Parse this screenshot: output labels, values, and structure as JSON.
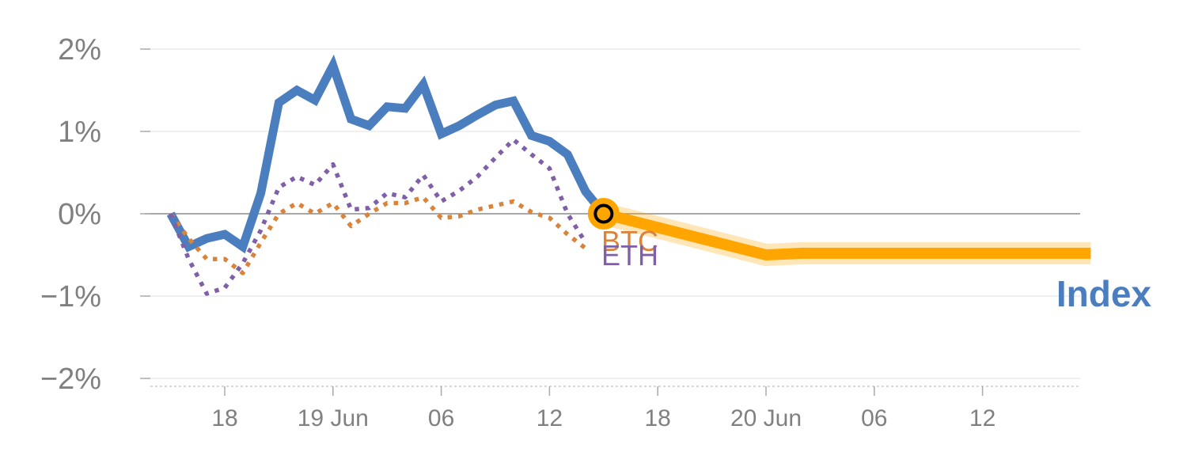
{
  "chart_data": {
    "type": "line",
    "y_unit": "%",
    "ylim": [
      -2,
      2
    ],
    "yticks": [
      {
        "value": 2,
        "label": "2%"
      },
      {
        "value": 1,
        "label": "1%"
      },
      {
        "value": 0,
        "label": "0%"
      },
      {
        "value": -1,
        "label": "−1%"
      },
      {
        "value": -2,
        "label": "−2%"
      }
    ],
    "x_unit": "hours",
    "xlim": [
      -4,
      48
    ],
    "xticks": [
      {
        "value": 0,
        "label": "18"
      },
      {
        "value": 6,
        "label": "19 Jun"
      },
      {
        "value": 12,
        "label": "06"
      },
      {
        "value": 18,
        "label": "12"
      },
      {
        "value": 24,
        "label": "18"
      },
      {
        "value": 30,
        "label": "20 Jun"
      },
      {
        "value": 36,
        "label": "06"
      },
      {
        "value": 42,
        "label": "12"
      }
    ],
    "grid": true,
    "series": [
      {
        "name": "Index",
        "color": "#4a7ebf",
        "style": "solid",
        "x": [
          -3,
          -2,
          -1,
          0,
          1,
          2,
          3,
          4,
          5,
          6,
          7,
          8,
          9,
          10,
          11,
          12,
          13,
          14,
          15,
          16,
          17,
          18,
          19,
          20,
          21
        ],
        "values": [
          0.0,
          -0.4,
          -0.3,
          -0.25,
          -0.4,
          0.25,
          1.35,
          1.5,
          1.38,
          1.8,
          1.15,
          1.07,
          1.3,
          1.28,
          1.57,
          0.97,
          1.07,
          1.2,
          1.32,
          1.37,
          0.95,
          0.88,
          0.72,
          0.27,
          0.0
        ]
      },
      {
        "name": "BTC",
        "color": "#d9843a",
        "style": "dotted",
        "x": [
          -3,
          -2,
          -1,
          0,
          1,
          2,
          3,
          4,
          5,
          6,
          7,
          8,
          9,
          10,
          11,
          12,
          13,
          14,
          15,
          16,
          17,
          18,
          19,
          20
        ],
        "values": [
          0.0,
          -0.3,
          -0.55,
          -0.55,
          -0.72,
          -0.35,
          0.0,
          0.13,
          0.0,
          0.13,
          -0.15,
          0.0,
          0.13,
          0.13,
          0.2,
          -0.05,
          -0.03,
          0.05,
          0.1,
          0.15,
          0.02,
          -0.05,
          -0.25,
          -0.42
        ]
      },
      {
        "name": "ETH",
        "color": "#7f5fa8",
        "style": "dotted",
        "x": [
          -3,
          -2,
          -1,
          0,
          1,
          2,
          3,
          4,
          5,
          6,
          7,
          8,
          9,
          10,
          11,
          12,
          13,
          14,
          15,
          16,
          17,
          18,
          19,
          20
        ],
        "values": [
          0.0,
          -0.55,
          -0.97,
          -0.9,
          -0.6,
          -0.2,
          0.32,
          0.45,
          0.35,
          0.6,
          0.05,
          0.07,
          0.25,
          0.2,
          0.47,
          0.15,
          0.28,
          0.45,
          0.68,
          0.9,
          0.72,
          0.55,
          0.0,
          -0.35
        ]
      },
      {
        "name": "",
        "color": "#ffa500",
        "style": "band",
        "x": [
          21,
          30,
          32,
          48
        ],
        "values": [
          0.0,
          -0.5,
          -0.48,
          -0.48
        ]
      }
    ],
    "marker": {
      "x": 21,
      "y": 0.0,
      "fill": "#ffa500",
      "inner": "#000000"
    },
    "labels": [
      {
        "text": "BTC",
        "color": "#d9843a"
      },
      {
        "text": "ETH",
        "color": "#7f5fa8"
      },
      {
        "text": "Index",
        "color": "#4a7ebf"
      }
    ]
  }
}
